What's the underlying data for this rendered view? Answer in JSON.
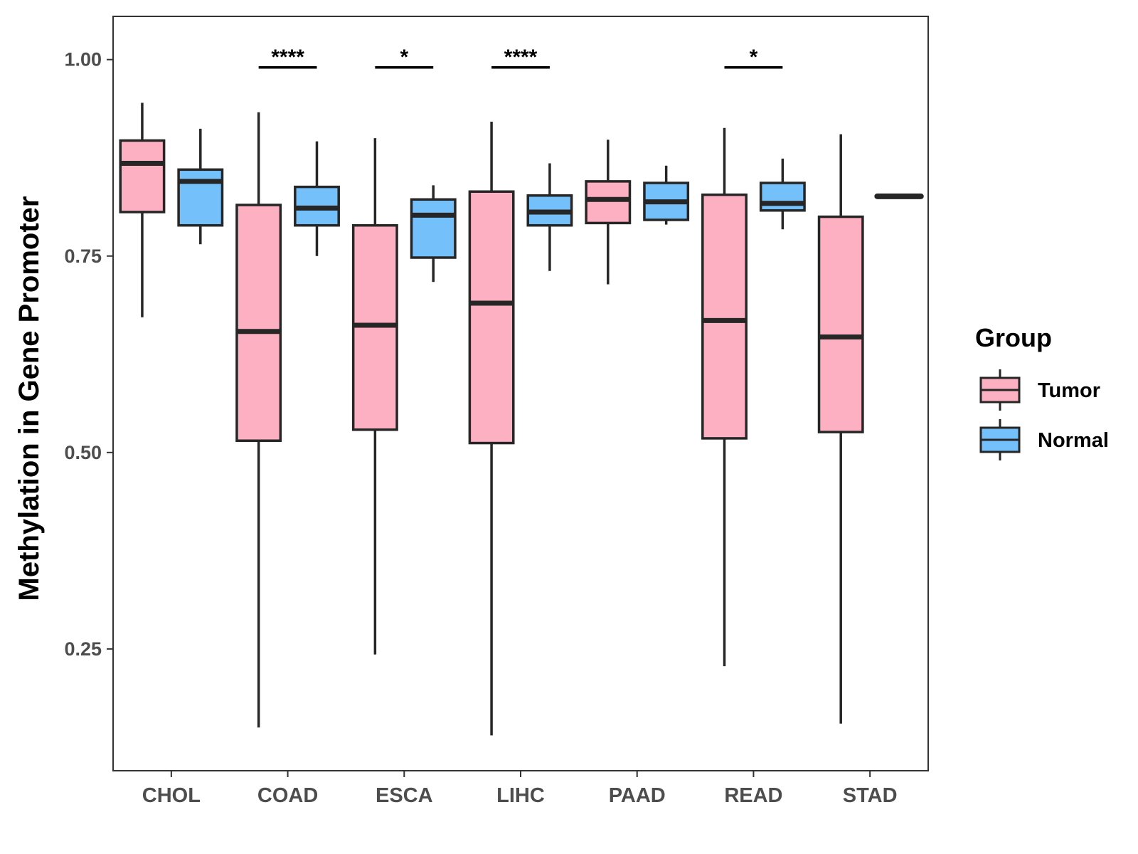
{
  "chart_data": {
    "type": "boxplot",
    "title": "",
    "xlabel": "",
    "ylabel": "Methylation in Gene Promoter",
    "ylim": [
      0.095,
      1.055
    ],
    "yticks": [
      0.25,
      0.5,
      0.75,
      1.0
    ],
    "ytick_labels": [
      "0.25",
      "0.50",
      "0.75",
      "1.00"
    ],
    "categories": [
      "CHOL",
      "COAD",
      "ESCA",
      "LIHC",
      "PAAD",
      "READ",
      "STAD"
    ],
    "legend": {
      "title": "Group",
      "placement": "right",
      "entries": [
        {
          "name": "Tumor",
          "color": "#FDB0C1"
        },
        {
          "name": "Normal",
          "color": "#74C0FA"
        }
      ]
    },
    "series": [
      {
        "name": "Tumor",
        "color": "#FDB0C1",
        "boxes": [
          {
            "category": "CHOL",
            "whisker_low": 0.672,
            "q1": 0.806,
            "median": 0.868,
            "q3": 0.897,
            "whisker_high": 0.945
          },
          {
            "category": "COAD",
            "whisker_low": 0.15,
            "q1": 0.515,
            "median": 0.654,
            "q3": 0.815,
            "whisker_high": 0.933
          },
          {
            "category": "ESCA",
            "whisker_low": 0.243,
            "q1": 0.529,
            "median": 0.662,
            "q3": 0.789,
            "whisker_high": 0.9
          },
          {
            "category": "LIHC",
            "whisker_low": 0.14,
            "q1": 0.512,
            "median": 0.69,
            "q3": 0.832,
            "whisker_high": 0.921
          },
          {
            "category": "PAAD",
            "whisker_low": 0.714,
            "q1": 0.792,
            "median": 0.822,
            "q3": 0.845,
            "whisker_high": 0.898
          },
          {
            "category": "READ",
            "whisker_low": 0.228,
            "q1": 0.518,
            "median": 0.668,
            "q3": 0.828,
            "whisker_high": 0.913
          },
          {
            "category": "STAD",
            "whisker_low": 0.155,
            "q1": 0.526,
            "median": 0.647,
            "q3": 0.8,
            "whisker_high": 0.905
          }
        ]
      },
      {
        "name": "Normal",
        "color": "#74C0FA",
        "boxes": [
          {
            "category": "CHOL",
            "whisker_low": 0.765,
            "q1": 0.789,
            "median": 0.845,
            "q3": 0.86,
            "whisker_high": 0.912
          },
          {
            "category": "COAD",
            "whisker_low": 0.75,
            "q1": 0.789,
            "median": 0.811,
            "q3": 0.838,
            "whisker_high": 0.896
          },
          {
            "category": "ESCA",
            "whisker_low": 0.717,
            "q1": 0.748,
            "median": 0.802,
            "q3": 0.822,
            "whisker_high": 0.84
          },
          {
            "category": "LIHC",
            "whisker_low": 0.731,
            "q1": 0.789,
            "median": 0.806,
            "q3": 0.827,
            "whisker_high": 0.868
          },
          {
            "category": "PAAD",
            "whisker_low": 0.79,
            "q1": 0.796,
            "median": 0.819,
            "q3": 0.843,
            "whisker_high": 0.865
          },
          {
            "category": "READ",
            "whisker_low": 0.784,
            "q1": 0.808,
            "median": 0.817,
            "q3": 0.843,
            "whisker_high": 0.874
          },
          {
            "category": "STAD",
            "whisker_low": 0.826,
            "q1": 0.826,
            "median": 0.826,
            "q3": 0.826,
            "whisker_high": 0.826
          }
        ]
      }
    ],
    "annotations": [
      {
        "category": "COAD",
        "label": "****",
        "y": 0.99
      },
      {
        "category": "ESCA",
        "label": "*",
        "y": 0.99
      },
      {
        "category": "LIHC",
        "label": "****",
        "y": 0.99
      },
      {
        "category": "READ",
        "label": "*",
        "y": 0.99
      }
    ]
  }
}
